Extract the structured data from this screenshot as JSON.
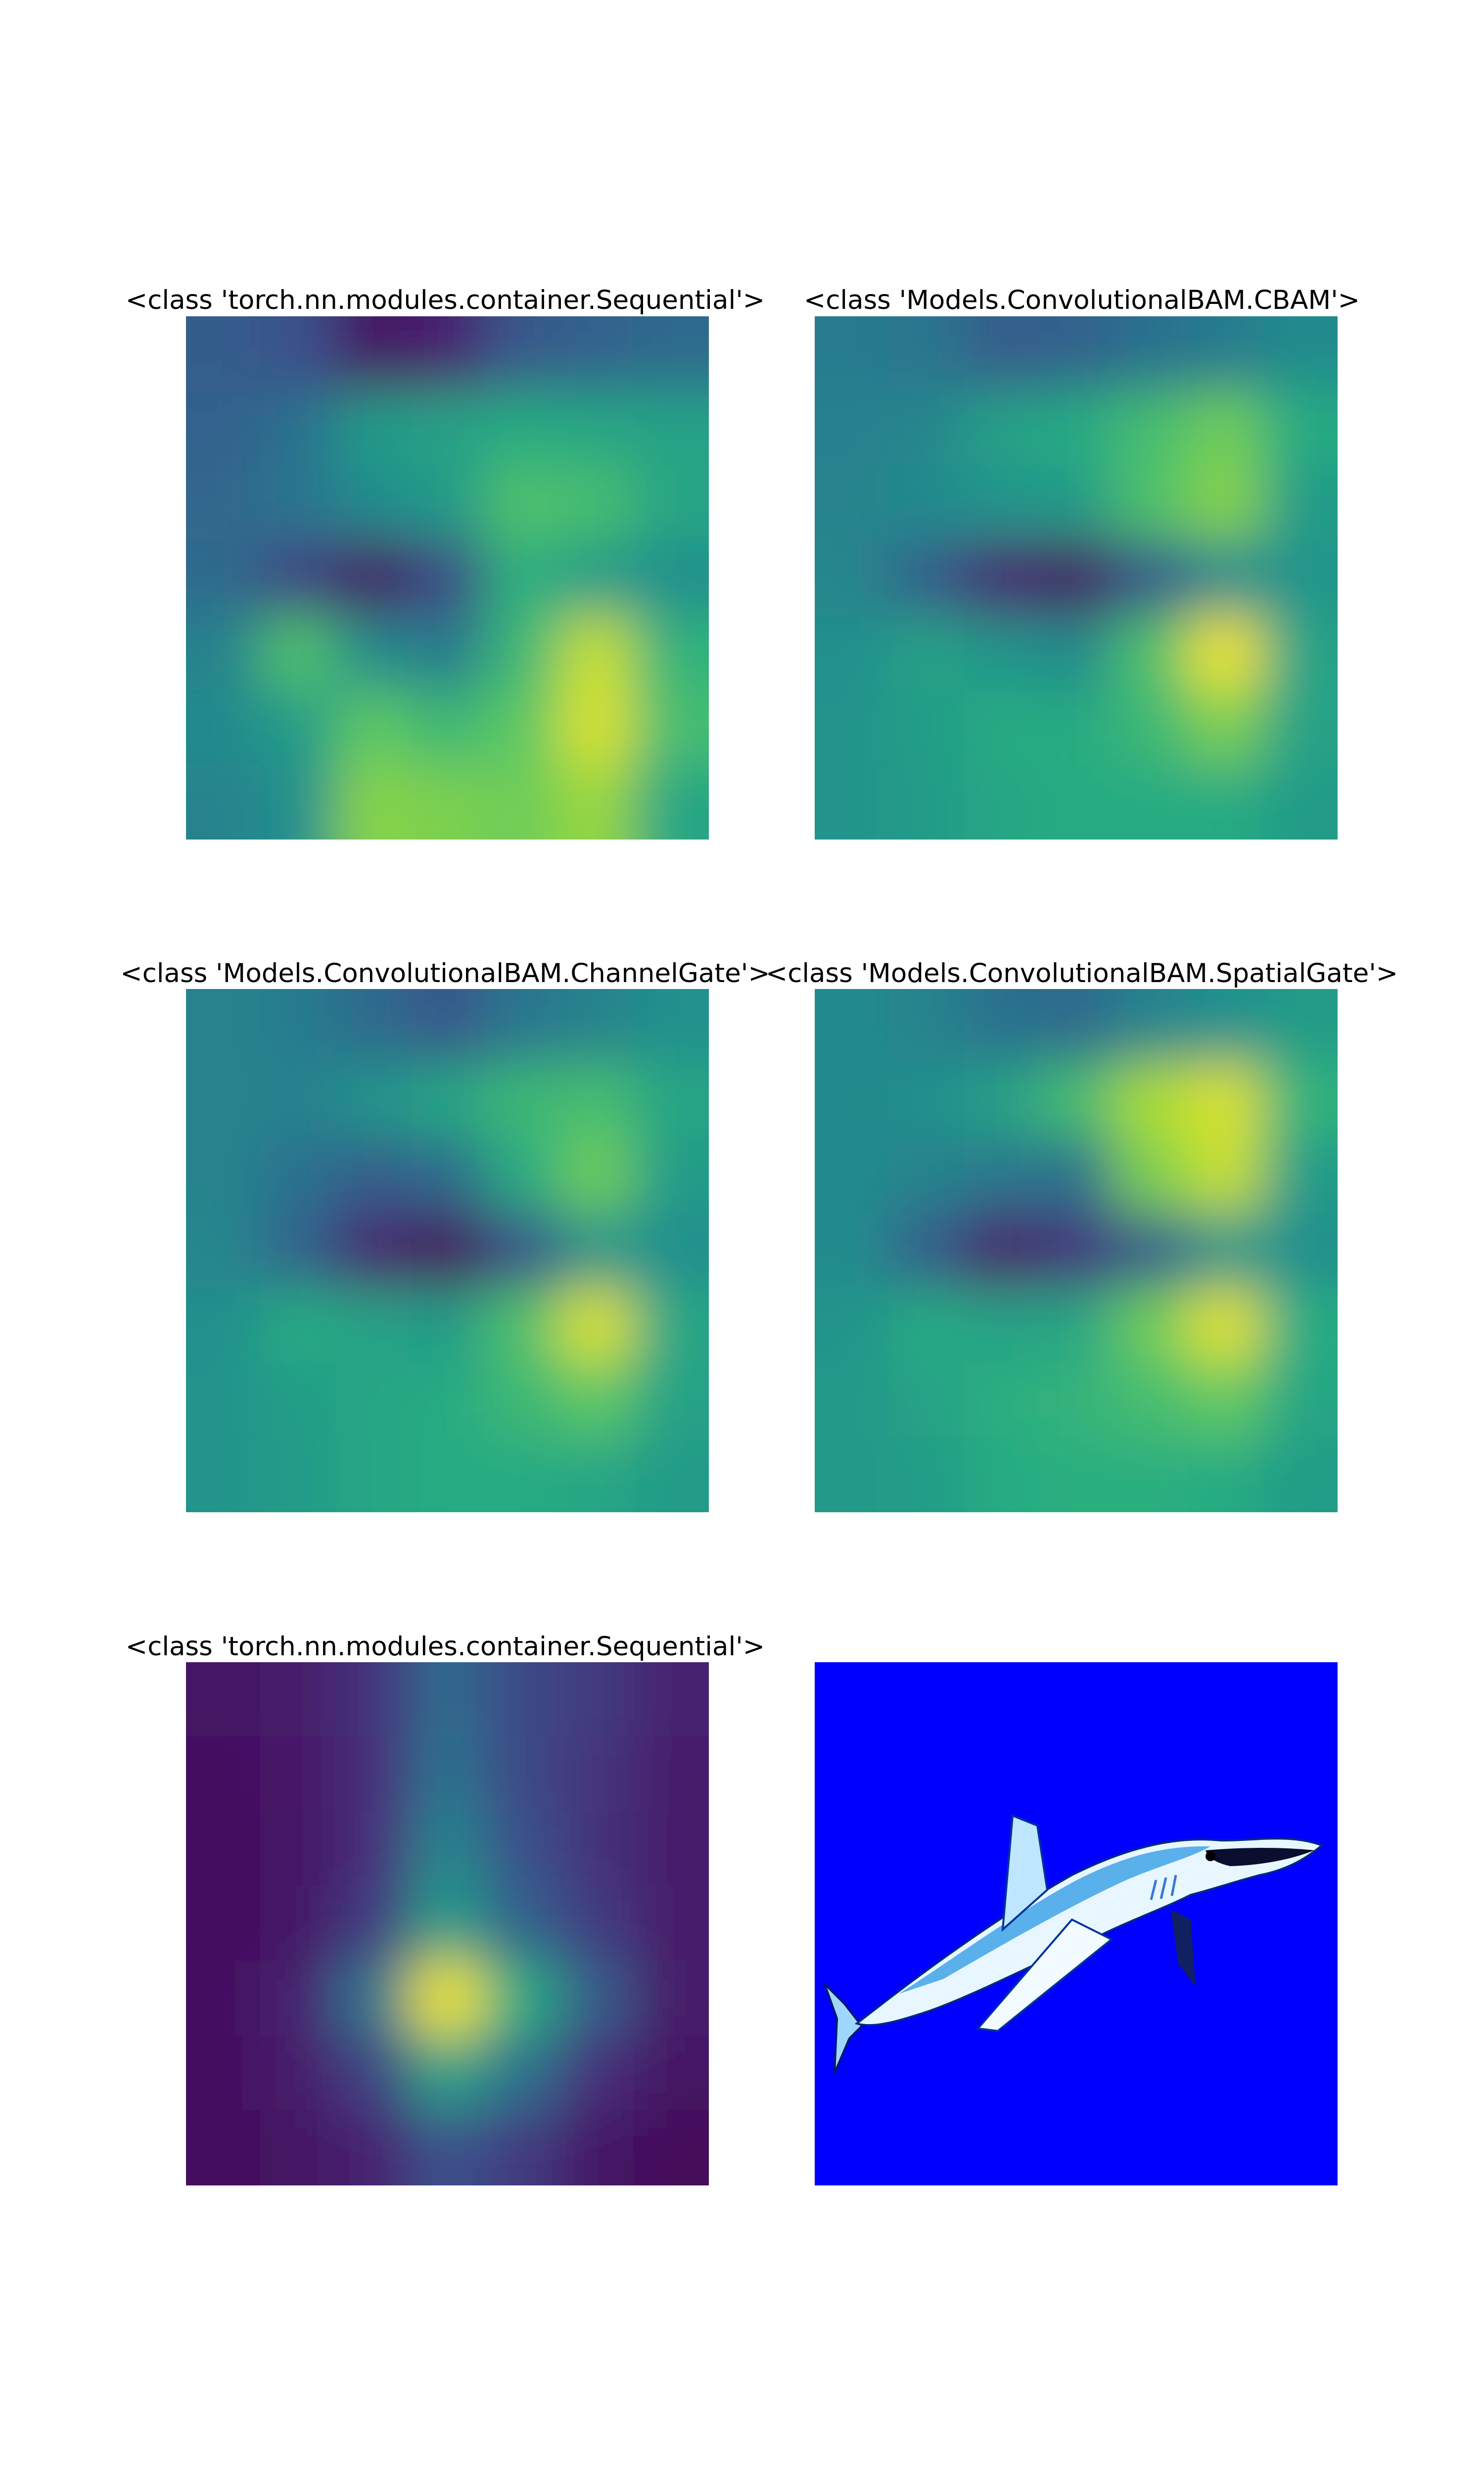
{
  "chart_data": [
    {
      "type": "heatmap",
      "title": "<class 'torch.nn.modules.container.Sequential'>",
      "colormap": "viridis",
      "grid": false,
      "axes": "off",
      "size": [
        7,
        7
      ],
      "values": [
        [
          0.3,
          0.25,
          0.05,
          0.1,
          0.28,
          0.32,
          0.35
        ],
        [
          0.32,
          0.38,
          0.55,
          0.58,
          0.62,
          0.6,
          0.58
        ],
        [
          0.34,
          0.4,
          0.48,
          0.55,
          0.72,
          0.7,
          0.6
        ],
        [
          0.35,
          0.2,
          0.05,
          0.22,
          0.64,
          0.55,
          0.5
        ],
        [
          0.45,
          0.72,
          0.48,
          0.42,
          0.68,
          0.92,
          0.65
        ],
        [
          0.48,
          0.55,
          0.75,
          0.68,
          0.75,
          0.95,
          0.7
        ],
        [
          0.45,
          0.5,
          0.82,
          0.8,
          0.78,
          0.85,
          0.6
        ]
      ]
    },
    {
      "type": "heatmap",
      "title": "<class 'Models.ConvolutionalBAM.CBAM'>",
      "colormap": "viridis",
      "grid": false,
      "axes": "off",
      "size": [
        7,
        7
      ],
      "values": [
        [
          0.42,
          0.4,
          0.3,
          0.32,
          0.38,
          0.42,
          0.48
        ],
        [
          0.44,
          0.46,
          0.58,
          0.62,
          0.7,
          0.78,
          0.62
        ],
        [
          0.45,
          0.48,
          0.52,
          0.55,
          0.72,
          0.82,
          0.55
        ],
        [
          0.46,
          0.3,
          0.1,
          0.05,
          0.28,
          0.48,
          0.52
        ],
        [
          0.5,
          0.58,
          0.52,
          0.48,
          0.72,
          0.98,
          0.58
        ],
        [
          0.52,
          0.56,
          0.62,
          0.62,
          0.68,
          0.8,
          0.58
        ],
        [
          0.52,
          0.55,
          0.6,
          0.62,
          0.62,
          0.62,
          0.55
        ]
      ]
    },
    {
      "type": "heatmap",
      "title": "<class 'Models.ConvolutionalBAM.ChannelGate'>",
      "colormap": "viridis",
      "grid": false,
      "axes": "off",
      "size": [
        7,
        7
      ],
      "values": [
        [
          0.45,
          0.42,
          0.35,
          0.28,
          0.4,
          0.45,
          0.5
        ],
        [
          0.45,
          0.44,
          0.52,
          0.6,
          0.68,
          0.7,
          0.6
        ],
        [
          0.45,
          0.38,
          0.3,
          0.35,
          0.62,
          0.78,
          0.55
        ],
        [
          0.46,
          0.32,
          0.1,
          0.02,
          0.25,
          0.52,
          0.5
        ],
        [
          0.5,
          0.62,
          0.58,
          0.55,
          0.72,
          0.95,
          0.6
        ],
        [
          0.52,
          0.56,
          0.6,
          0.62,
          0.68,
          0.75,
          0.58
        ],
        [
          0.52,
          0.55,
          0.6,
          0.62,
          0.62,
          0.6,
          0.55
        ]
      ]
    },
    {
      "type": "heatmap",
      "title": "<class 'Models.ConvolutionalBAM.SpatialGate'>",
      "colormap": "viridis",
      "grid": false,
      "axes": "off",
      "size": [
        7,
        7
      ],
      "values": [
        [
          0.48,
          0.45,
          0.38,
          0.35,
          0.45,
          0.5,
          0.55
        ],
        [
          0.48,
          0.5,
          0.58,
          0.7,
          0.88,
          0.95,
          0.65
        ],
        [
          0.48,
          0.45,
          0.4,
          0.38,
          0.8,
          0.92,
          0.55
        ],
        [
          0.48,
          0.3,
          0.08,
          0.15,
          0.3,
          0.52,
          0.5
        ],
        [
          0.52,
          0.62,
          0.58,
          0.6,
          0.78,
          0.96,
          0.62
        ],
        [
          0.54,
          0.58,
          0.64,
          0.66,
          0.7,
          0.76,
          0.6
        ],
        [
          0.54,
          0.56,
          0.62,
          0.64,
          0.64,
          0.62,
          0.56
        ]
      ]
    },
    {
      "type": "heatmap",
      "title": "<class 'torch.nn.modules.container.Sequential'>",
      "colormap": "viridis",
      "grid": false,
      "axes": "off",
      "size": [
        7,
        7
      ],
      "values": [
        [
          0.05,
          0.08,
          0.15,
          0.35,
          0.22,
          0.18,
          0.1
        ],
        [
          0.04,
          0.07,
          0.14,
          0.38,
          0.22,
          0.16,
          0.08
        ],
        [
          0.03,
          0.06,
          0.14,
          0.45,
          0.25,
          0.15,
          0.08
        ],
        [
          0.03,
          0.06,
          0.18,
          0.55,
          0.32,
          0.18,
          0.08
        ],
        [
          0.04,
          0.1,
          0.4,
          0.98,
          0.62,
          0.3,
          0.08
        ],
        [
          0.04,
          0.08,
          0.2,
          0.58,
          0.38,
          0.14,
          0.05
        ],
        [
          0.03,
          0.05,
          0.1,
          0.25,
          0.18,
          0.06,
          0.02
        ]
      ]
    }
  ],
  "image_panel": {
    "subject": "shark",
    "background_color": "#0000ff"
  }
}
